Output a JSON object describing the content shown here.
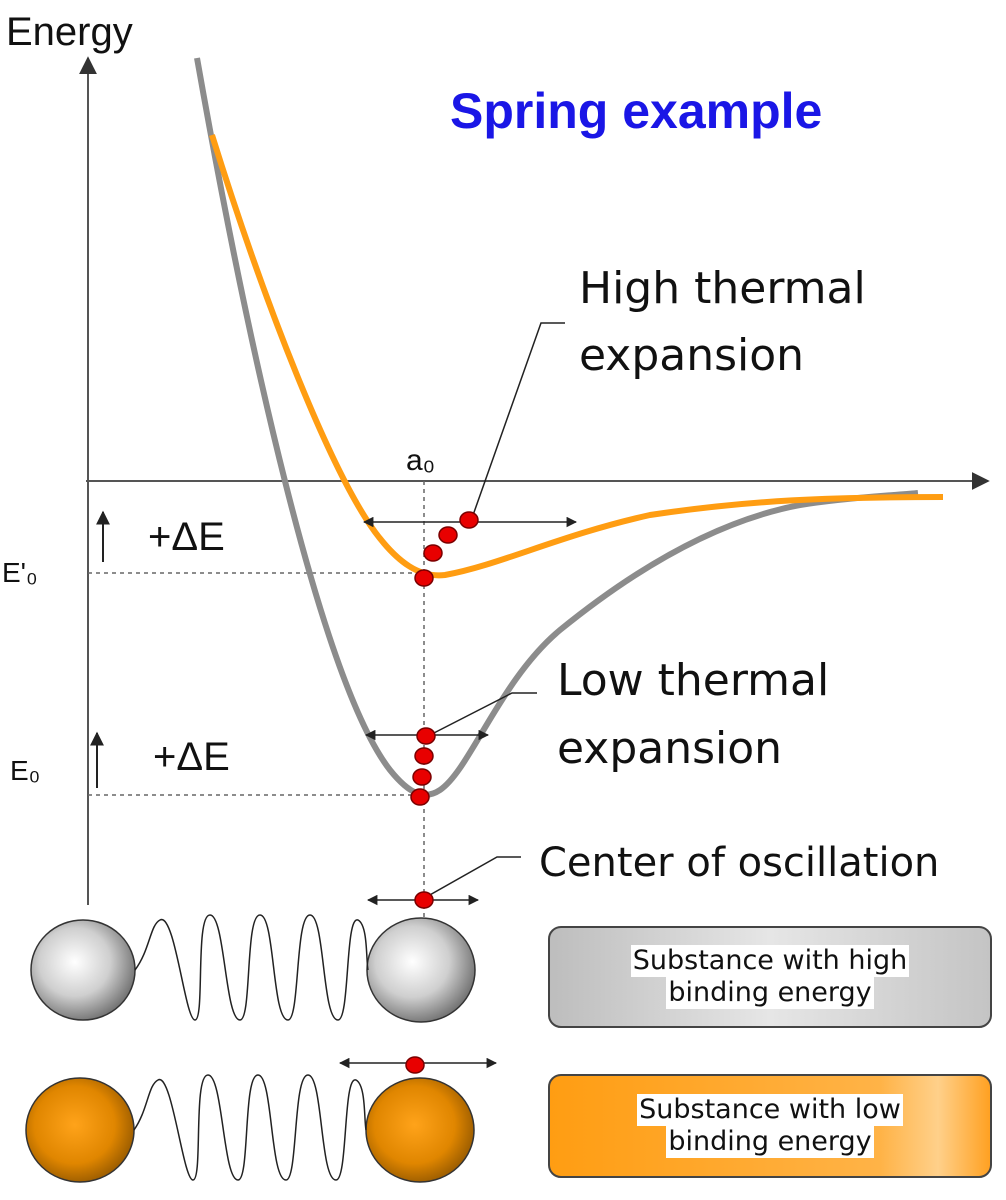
{
  "title": "Spring example",
  "axis": {
    "y_label": "Energy",
    "x_marker": "a₀"
  },
  "levels": {
    "e0_prime": "E'₀",
    "e0": "E₀",
    "delta_upper": "+ΔE",
    "delta_lower": "+ΔE"
  },
  "annotations": {
    "high_line1": "High thermal",
    "high_line2": "expansion",
    "low_line1": "Low thermal",
    "low_line2": "expansion",
    "center": "Center of oscillation"
  },
  "boxes": {
    "high_line1": "Substance with high",
    "high_line2": "binding energy",
    "low_line1": "Substance with low",
    "low_line2": "binding energy"
  },
  "colors": {
    "title": "#1a16e6",
    "low_binding_curve": "#ff9d12",
    "high_binding_curve": "#8c8c8c",
    "dot": "#e80000",
    "axis": "#555555"
  }
}
